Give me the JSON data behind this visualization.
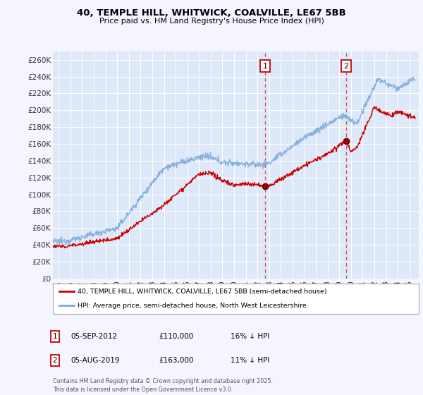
{
  "title_line1": "40, TEMPLE HILL, WHITWICK, COALVILLE, LE67 5BB",
  "title_line2": "Price paid vs. HM Land Registry's House Price Index (HPI)",
  "background_color": "#f5f5ff",
  "plot_bg_color": "#dde8f8",
  "grid_color": "#ffffff",
  "red_line_color": "#cc0000",
  "blue_line_color": "#7faadd",
  "marker1_x": 2012.67,
  "marker2_x": 2019.58,
  "marker1_y": 110000,
  "marker2_y": 163000,
  "legend_label_red": "40, TEMPLE HILL, WHITWICK, COALVILLE, LE67 5BB (semi-detached house)",
  "legend_label_blue": "HPI: Average price, semi-detached house, North West Leicestershire",
  "table_row1": [
    "1",
    "05-SEP-2012",
    "£110,000",
    "16% ↓ HPI"
  ],
  "table_row2": [
    "2",
    "05-AUG-2019",
    "£163,000",
    "11% ↓ HPI"
  ],
  "footer": "Contains HM Land Registry data © Crown copyright and database right 2025.\nThis data is licensed under the Open Government Licence v3.0.",
  "ylim": [
    0,
    270000
  ],
  "yticks": [
    0,
    20000,
    40000,
    60000,
    80000,
    100000,
    120000,
    140000,
    160000,
    180000,
    200000,
    220000,
    240000,
    260000
  ],
  "xmin": 1994.5,
  "xmax": 2025.8
}
